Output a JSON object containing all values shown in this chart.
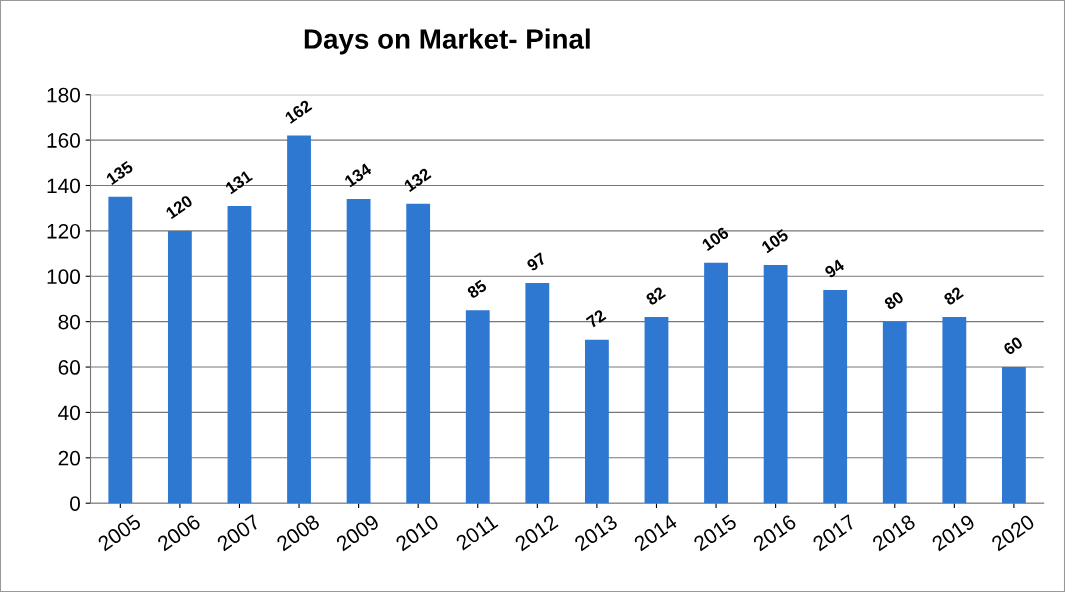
{
  "chart_data": {
    "type": "bar",
    "title": "Days on Market- Pinal",
    "categories": [
      "2005",
      "2006",
      "2007",
      "2008",
      "2009",
      "2010",
      "2011",
      "2012",
      "2013",
      "2014",
      "2015",
      "2016",
      "2017",
      "2018",
      "2019",
      "2020"
    ],
    "values": [
      135,
      120,
      131,
      162,
      134,
      132,
      85,
      97,
      72,
      82,
      106,
      105,
      94,
      80,
      82,
      60
    ],
    "color": "#2e78d2",
    "ylim": [
      0,
      180
    ],
    "yticks": [
      0,
      20,
      40,
      60,
      80,
      100,
      120,
      140,
      160,
      180
    ],
    "grid": "y",
    "data_labels": true
  }
}
